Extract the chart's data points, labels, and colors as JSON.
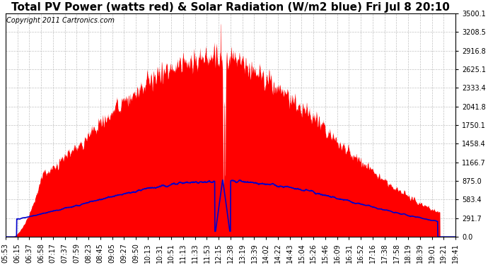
{
  "title": "Total PV Power (watts red) & Solar Radiation (W/m2 blue) Fri Jul 8 20:10",
  "copyright": "Copyright 2011 Cartronics.com",
  "bg_color": "#ffffff",
  "plot_bg_color": "#ffffff",
  "grid_color": "#bbbbbb",
  "red_color": "#ff0000",
  "blue_color": "#0000cc",
  "ylim": [
    0,
    3500.1
  ],
  "yticks": [
    0.0,
    291.7,
    583.4,
    875.0,
    1166.7,
    1458.4,
    1750.1,
    2041.8,
    2333.4,
    2625.1,
    2916.8,
    3208.5,
    3500.1
  ],
  "x_labels": [
    "05:53",
    "06:15",
    "06:37",
    "06:58",
    "07:17",
    "07:37",
    "07:59",
    "08:23",
    "08:45",
    "09:05",
    "09:27",
    "09:50",
    "10:13",
    "10:31",
    "10:51",
    "11:13",
    "11:33",
    "11:53",
    "12:15",
    "12:38",
    "13:19",
    "13:39",
    "14:02",
    "14:22",
    "14:43",
    "15:04",
    "15:26",
    "15:46",
    "16:09",
    "16:31",
    "16:52",
    "17:16",
    "17:38",
    "17:58",
    "18:19",
    "18:39",
    "19:01",
    "19:21",
    "19:41"
  ],
  "title_fontsize": 11,
  "copyright_fontsize": 7,
  "tick_fontsize": 7,
  "figsize": [
    6.9,
    3.75
  ],
  "dpi": 100
}
